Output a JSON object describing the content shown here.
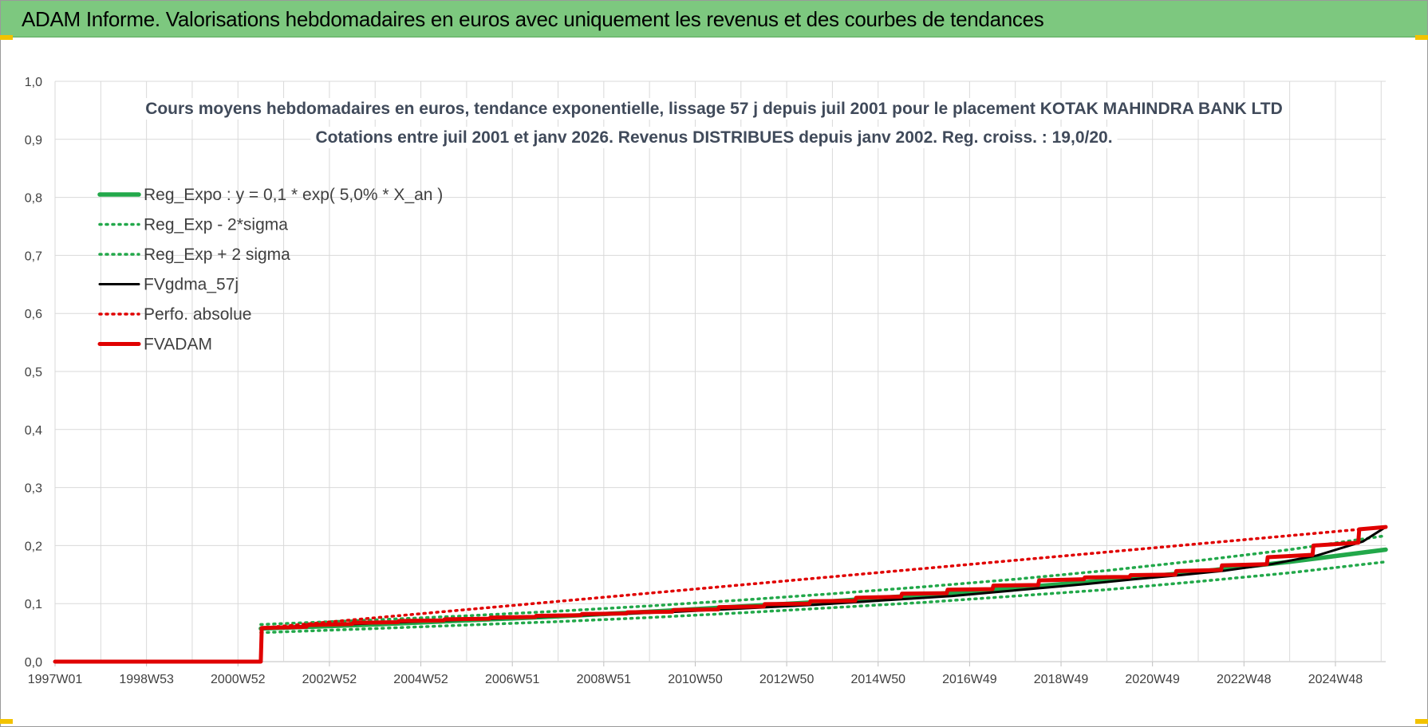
{
  "banner": {
    "title": "ADAM Informe. Valorisations hebdomadaires en euros avec uniquement les revenus et des courbes de tendances"
  },
  "colors": {
    "banner_bg": "#7dc87f",
    "reg_green": "#22a84a",
    "adam_red": "#e00000",
    "fvgdma_black": "#000000",
    "grid": "#d9d9d9"
  },
  "chart_data": {
    "type": "line",
    "title_lines": [
      "Cours moyens hebdomadaires en euros, tendance exponentielle, lissage 57 j depuis juil 2001 pour le placement KOTAK MAHINDRA BANK LTD",
      "Cotations entre juil 2001 et janv 2026. Revenus DISTRIBUES depuis janv 2002. Reg. croiss. : 19,0/20."
    ],
    "xlabel": "",
    "ylabel": "",
    "ylim": [
      0,
      1
    ],
    "y_ticks": [
      "0,0",
      "0,1",
      "0,2",
      "0,3",
      "0,4",
      "0,5",
      "0,6",
      "0,7",
      "0,8",
      "0,9",
      "1,0"
    ],
    "x_ticks": [
      "1997W01",
      "1998W53",
      "2000W52",
      "2002W52",
      "2004W52",
      "2006W51",
      "2008W51",
      "2010W50",
      "2012W50",
      "2014W50",
      "2016W49",
      "2018W49",
      "2020W49",
      "2022W48",
      "2024W48"
    ],
    "x_range_years": [
      1997.0,
      2026.1
    ],
    "grid": true,
    "legend_position": "top-left",
    "series": [
      {
        "name": "Reg_Expo : y = 0,1 * exp( 5,0% *  X_an )",
        "style": "solid-thick",
        "color": "#22a84a",
        "x": [
          2001.5,
          2004,
          2006,
          2008,
          2010,
          2012,
          2014,
          2016,
          2018,
          2020,
          2022,
          2024,
          2026.1
        ],
        "y": [
          0.057,
          0.064,
          0.071,
          0.078,
          0.086,
          0.095,
          0.104,
          0.115,
          0.127,
          0.14,
          0.155,
          0.172,
          0.193
        ]
      },
      {
        "name": "Reg_Exp - 2*sigma",
        "style": "dotted",
        "color": "#22a84a",
        "x": [
          2001.5,
          2004,
          2006,
          2008,
          2010,
          2012,
          2014,
          2016,
          2018,
          2020,
          2022,
          2024,
          2026.1
        ],
        "y": [
          0.05,
          0.057,
          0.063,
          0.069,
          0.076,
          0.084,
          0.093,
          0.102,
          0.113,
          0.124,
          0.138,
          0.153,
          0.172
        ]
      },
      {
        "name": "Reg_Exp + 2 sigma",
        "style": "dotted",
        "color": "#22a84a",
        "x": [
          2001.5,
          2004,
          2006,
          2008,
          2010,
          2012,
          2014,
          2016,
          2018,
          2020,
          2022,
          2024,
          2026.1
        ],
        "y": [
          0.064,
          0.072,
          0.079,
          0.087,
          0.096,
          0.106,
          0.117,
          0.129,
          0.142,
          0.157,
          0.174,
          0.193,
          0.217
        ]
      },
      {
        "name": "FVgdma_57j",
        "style": "solid",
        "color": "#000000",
        "x": [
          1997.0,
          2001.5,
          2001.52,
          2002.6,
          2003.6,
          2004.6,
          2005.6,
          2006.6,
          2007.6,
          2008.6,
          2009.6,
          2010.6,
          2011.6,
          2012.6,
          2013.6,
          2014.6,
          2015.6,
          2016.6,
          2017.6,
          2018.6,
          2019.6,
          2020.6,
          2021.6,
          2022.6,
          2023.6,
          2024.6,
          2025.6,
          2026.1
        ],
        "y": [
          0.0,
          0.0,
          0.058,
          0.062,
          0.065,
          0.068,
          0.071,
          0.074,
          0.077,
          0.08,
          0.083,
          0.086,
          0.09,
          0.094,
          0.098,
          0.103,
          0.108,
          0.113,
          0.12,
          0.127,
          0.134,
          0.142,
          0.149,
          0.157,
          0.168,
          0.183,
          0.207,
          0.232
        ]
      },
      {
        "name": "Perfo. absolue",
        "style": "dotted",
        "color": "#e00000",
        "x": [
          1997.0,
          2001.5,
          2001.52,
          2026.1
        ],
        "y": [
          0.0,
          0.0,
          0.058,
          0.232
        ]
      },
      {
        "name": "FVADAM",
        "style": "solid-thick",
        "color": "#e00000",
        "x": [
          1997.0,
          2001.5,
          2001.52,
          2002.5,
          2002.52,
          2003.5,
          2003.52,
          2004.5,
          2004.52,
          2005.5,
          2005.52,
          2006.5,
          2006.52,
          2007.5,
          2007.52,
          2008.5,
          2008.52,
          2009.5,
          2009.52,
          2010.5,
          2010.52,
          2011.5,
          2011.52,
          2012.5,
          2012.52,
          2013.5,
          2013.52,
          2014.5,
          2014.52,
          2015.5,
          2015.52,
          2016.5,
          2016.52,
          2017.5,
          2017.52,
          2018.5,
          2018.52,
          2019.5,
          2019.52,
          2020.5,
          2020.52,
          2021.5,
          2021.52,
          2022.5,
          2022.52,
          2023.5,
          2023.52,
          2024.5,
          2024.52,
          2025.5,
          2025.52,
          2026.1
        ],
        "y": [
          0.0,
          0.0,
          0.058,
          0.06,
          0.063,
          0.065,
          0.067,
          0.068,
          0.07,
          0.071,
          0.073,
          0.074,
          0.076,
          0.077,
          0.079,
          0.08,
          0.082,
          0.083,
          0.085,
          0.086,
          0.089,
          0.09,
          0.094,
          0.095,
          0.099,
          0.1,
          0.104,
          0.105,
          0.11,
          0.112,
          0.117,
          0.118,
          0.124,
          0.125,
          0.131,
          0.132,
          0.14,
          0.142,
          0.145,
          0.146,
          0.149,
          0.15,
          0.156,
          0.158,
          0.166,
          0.168,
          0.18,
          0.184,
          0.2,
          0.205,
          0.228,
          0.232
        ]
      }
    ]
  }
}
